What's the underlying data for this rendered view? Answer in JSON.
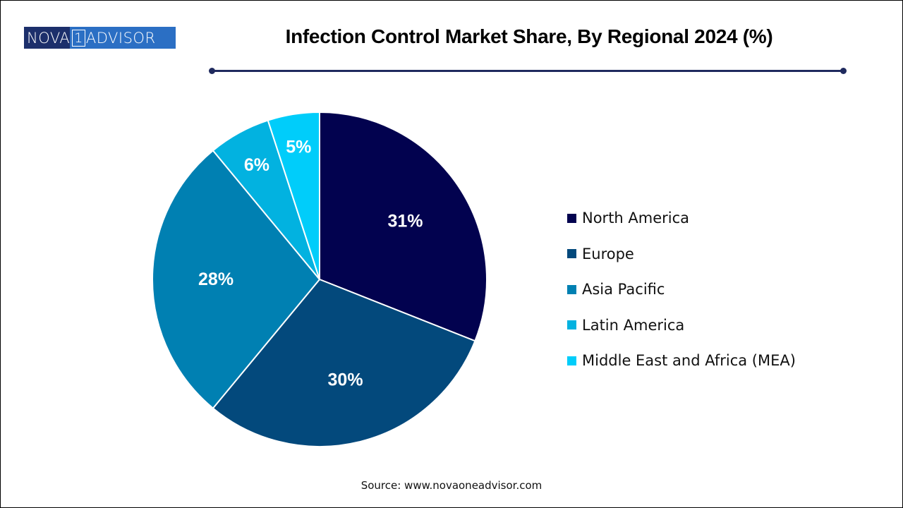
{
  "logo": {
    "left": "NOVA",
    "one": "1",
    "right": "ADVISOR"
  },
  "chart_data": {
    "type": "pie",
    "title": "Infection Control Market Share, By Regional 2024 (%)",
    "categories": [
      "North America",
      "Europe",
      "Asia Pacific",
      "Latin America",
      "Middle East and Africa (MEA)"
    ],
    "values": [
      31,
      30,
      28,
      6,
      5
    ],
    "labels": [
      "31%",
      "30%",
      "28%",
      "6%",
      "5%"
    ],
    "colors": [
      "#02024f",
      "#03497c",
      "#0080b2",
      "#02b2e0",
      "#00cdfa"
    ],
    "start_angle": "12 o'clock",
    "direction": "clockwise",
    "legend_position": "right",
    "unit": "%"
  },
  "source": "Source: www.novaoneadvisor.com"
}
